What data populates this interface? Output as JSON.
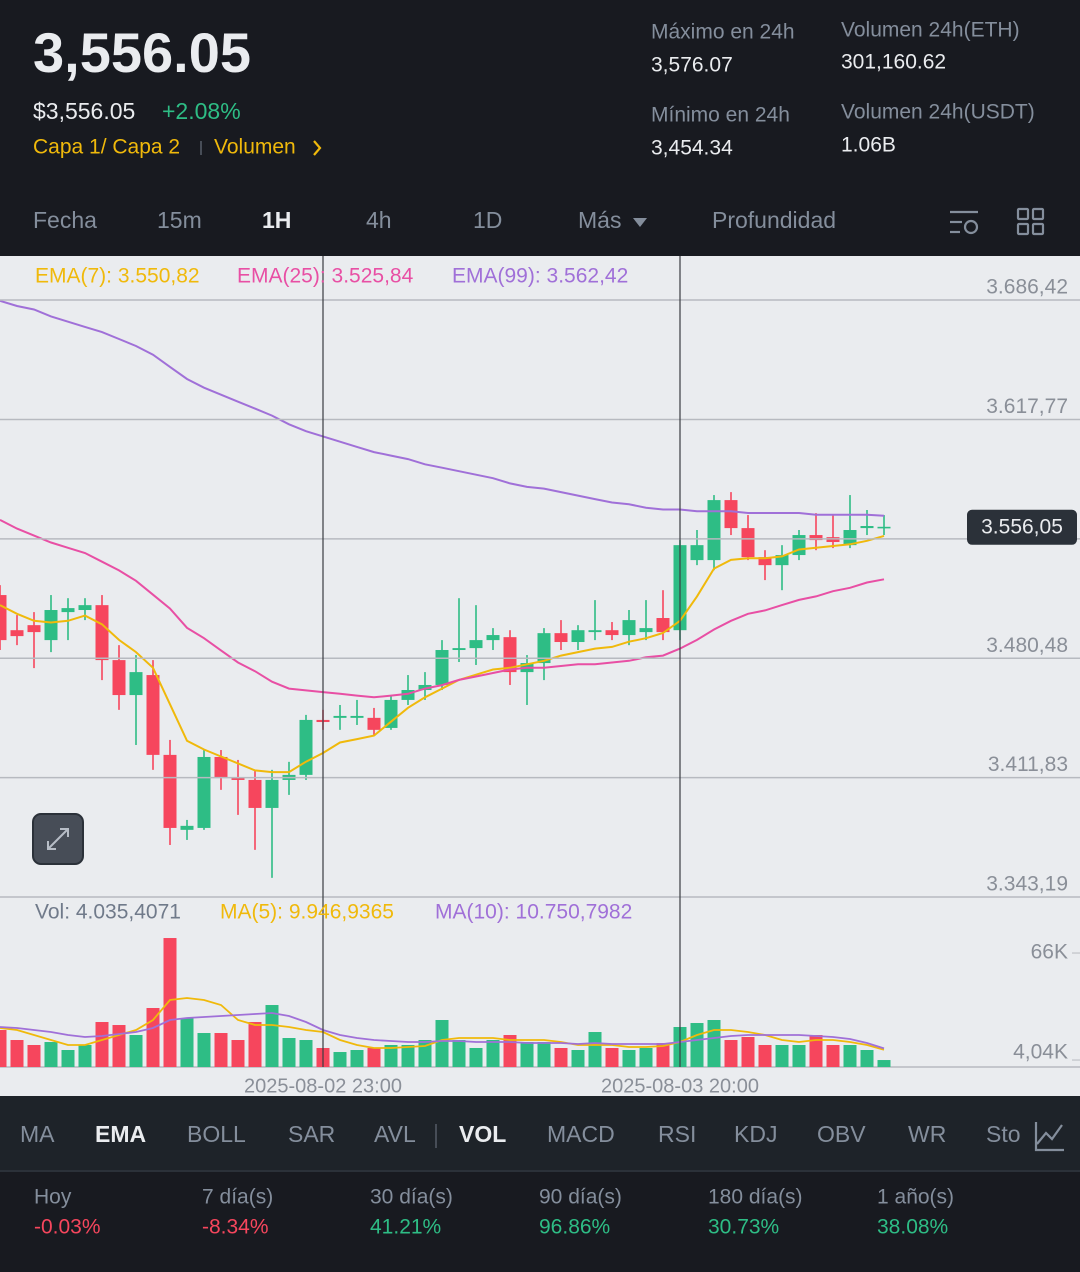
{
  "header": {
    "price": "3,556.05",
    "fiat_price": "$3,556.05",
    "change": "+2.08%",
    "tag": "Capa 1/ Capa 2",
    "tag_link": "Volumen",
    "stats": [
      {
        "label": "Máximo en 24h",
        "value": "3,576.07"
      },
      {
        "label": "Mínimo en 24h",
        "value": "3,454.34"
      },
      {
        "label": "Volumen 24h(ETH)",
        "value": "301,160.62"
      },
      {
        "label": "Volumen 24h(USDT)",
        "value": "1.06B"
      }
    ]
  },
  "tabs": [
    {
      "label": "Fecha",
      "active": false
    },
    {
      "label": "15m",
      "active": false
    },
    {
      "label": "1H",
      "active": true
    },
    {
      "label": "4h",
      "active": false
    },
    {
      "label": "1D",
      "active": false
    },
    {
      "label": "Más",
      "active": false
    },
    {
      "label": "Profundidad",
      "active": false
    }
  ],
  "chart_data": [
    {
      "type": "candlestick",
      "up_color": "#2ebd85",
      "down_color": "#f6465d",
      "categories": [
        null,
        null,
        null,
        null,
        null,
        null,
        null,
        null,
        null,
        null,
        null,
        null,
        null,
        null,
        null,
        null,
        null,
        null,
        null,
        "2025-08-02 23:00",
        null,
        null,
        null,
        null,
        null,
        null,
        null,
        null,
        null,
        null,
        null,
        null,
        null,
        null,
        null,
        null,
        null,
        null,
        null,
        null,
        "2025-08-03 20:00",
        null,
        null,
        null,
        null,
        null,
        null,
        null,
        null,
        null,
        null,
        null,
        null
      ],
      "open": [
        3516.8,
        3496.6,
        3499.5,
        3490.9,
        3507.0,
        3508.2,
        3511.0,
        3479.4,
        3459.3,
        3470.8,
        3424.9,
        3381.8,
        3382.9,
        3423.7,
        3411.7,
        3410.5,
        3394.4,
        3410.5,
        3413.4,
        3445.0,
        3446.2,
        3446.2,
        3446.2,
        3440.4,
        3456.5,
        3462.2,
        3465.1,
        3485.2,
        3486.3,
        3490.9,
        3492.6,
        3472.5,
        3477.7,
        3494.9,
        3489.8,
        3495.5,
        3496.6,
        3493.8,
        3495.5,
        3503.6,
        3496.6,
        3536.9,
        3536.9,
        3571.4,
        3555.3,
        3538.6,
        3534.0,
        3539.8,
        3551.3,
        3550.1,
        3545.5,
        3555.3,
        3555.9
      ],
      "high": [
        3522.5,
        3505.3,
        3507.0,
        3516.8,
        3515.0,
        3515.0,
        3516.8,
        3488.0,
        3482.3,
        3479.4,
        3433.5,
        3387.5,
        3427.7,
        3427.7,
        3422.0,
        3416.3,
        3416.3,
        3420.9,
        3447.9,
        3450.8,
        3453.6,
        3456.5,
        3451.9,
        3459.3,
        3470.8,
        3472.5,
        3490.9,
        3515.0,
        3511.0,
        3497.8,
        3496.6,
        3482.3,
        3497.8,
        3502.4,
        3499.5,
        3513.9,
        3501.3,
        3508.2,
        3513.9,
        3519.6,
        3548.4,
        3554.2,
        3574.3,
        3576.0,
        3562.8,
        3542.6,
        3545.5,
        3554.2,
        3563.9,
        3562.8,
        3574.3,
        3565.7,
        3562.8
      ],
      "low": [
        3485.2,
        3488.0,
        3474.8,
        3484.0,
        3490.9,
        3502.4,
        3467.9,
        3450.8,
        3430.6,
        3416.3,
        3373.1,
        3376.0,
        3381.8,
        3404.8,
        3390.4,
        3370.3,
        3354.2,
        3401.9,
        3410.5,
        3439.3,
        3439.3,
        3442.1,
        3436.4,
        3439.3,
        3453.6,
        3456.5,
        3462.2,
        3478.3,
        3476.6,
        3485.2,
        3465.1,
        3453.6,
        3467.9,
        3485.2,
        3485.2,
        3490.9,
        3490.9,
        3488.0,
        3490.9,
        3490.9,
        3490.9,
        3534.0,
        3531.1,
        3551.3,
        3536.9,
        3525.4,
        3519.6,
        3536.9,
        3542.6,
        3543.8,
        3543.8,
        3551.3,
        3551.3
      ],
      "close": [
        3490.9,
        3493.2,
        3495.5,
        3508.2,
        3509.3,
        3511.0,
        3479.4,
        3459.3,
        3472.5,
        3424.9,
        3382.9,
        3384.1,
        3423.7,
        3411.7,
        3410.5,
        3394.4,
        3410.5,
        3413.4,
        3445.0,
        3443.8,
        3447.3,
        3447.3,
        3439.3,
        3456.5,
        3462.2,
        3465.1,
        3485.2,
        3486.3,
        3490.9,
        3493.8,
        3472.5,
        3477.7,
        3494.9,
        3489.8,
        3496.6,
        3496.6,
        3493.8,
        3502.4,
        3497.8,
        3495.5,
        3545.5,
        3545.5,
        3571.4,
        3555.3,
        3538.6,
        3534.0,
        3539.8,
        3551.3,
        3548.4,
        3547.3,
        3554.2,
        3556.5,
        3556.05
      ],
      "series": [
        {
          "name": "EMA(7): 3.550,82",
          "color": "#f0b90b",
          "values": [
            3511,
            3506,
            3502,
            3501,
            3502,
            3505,
            3500,
            3491,
            3484,
            3475,
            3454,
            3433,
            3428,
            3424,
            3420,
            3416,
            3415,
            3415,
            3421,
            3426,
            3432,
            3434,
            3436,
            3444,
            3452,
            3458,
            3463,
            3468,
            3471,
            3474,
            3475,
            3477,
            3479,
            3482,
            3484,
            3486,
            3487,
            3490,
            3492,
            3495,
            3502,
            3516,
            3532,
            3537,
            3538,
            3538,
            3539,
            3543,
            3544,
            3545,
            3546,
            3548,
            3550.82
          ]
        },
        {
          "name": "EMA(25): 3.525,84",
          "color": "#e84fa4",
          "values": [
            3560,
            3555,
            3551,
            3547,
            3544,
            3541,
            3536,
            3531,
            3525,
            3517,
            3509,
            3498,
            3492,
            3485,
            3478,
            3473,
            3467,
            3463,
            3462,
            3461,
            3460,
            3459,
            3458,
            3459,
            3460,
            3463,
            3465,
            3468,
            3470,
            3472,
            3474,
            3475,
            3475,
            3476,
            3477,
            3477,
            3478,
            3479,
            3481,
            3482,
            3486,
            3491,
            3497,
            3502,
            3506,
            3508,
            3511,
            3514,
            3516,
            3519,
            3521,
            3524,
            3525.84
          ]
        },
        {
          "name": "EMA(99): 3.562,42",
          "color": "#a070d8",
          "values": [
            3686,
            3683,
            3681,
            3677,
            3674,
            3671,
            3668,
            3664,
            3660,
            3655,
            3648,
            3641,
            3636,
            3632,
            3628,
            3624,
            3620,
            3615,
            3611,
            3608,
            3605,
            3602,
            3599,
            3597,
            3595,
            3592,
            3590,
            3588,
            3586,
            3584,
            3581,
            3579,
            3578,
            3576,
            3574,
            3572,
            3570,
            3569,
            3567,
            3566,
            3566,
            3565,
            3565,
            3565,
            3564,
            3564,
            3564,
            3564,
            3563,
            3563,
            3563,
            3563,
            3562.42
          ]
        }
      ],
      "last_price": {
        "value": 3556.05,
        "label": "3.556,05"
      },
      "ylim": [
        3343.19,
        3710.6
      ],
      "yticks": [
        {
          "value": 3343.19,
          "label": "3.343,19"
        },
        {
          "value": 3411.83,
          "label": "3.411,83"
        },
        {
          "value": 3480.48,
          "label": "3.480,48"
        },
        {
          "value": 3549.12,
          "label": null
        },
        {
          "value": 3617.77,
          "label": "3.617,77"
        },
        {
          "value": 3686.42,
          "label": "3.686,42"
        }
      ],
      "grid": true
    },
    {
      "type": "bar",
      "title": "Vol: 4.035,4071",
      "values": [
        21420,
        15630,
        12740,
        14470,
        9840,
        12740,
        26050,
        24310,
        18530,
        34160,
        74680,
        28370,
        19680,
        19680,
        15630,
        26050,
        35890,
        16790,
        15630,
        11000,
        8680,
        9840,
        11000,
        12740,
        12740,
        15630,
        27210,
        15630,
        11000,
        15630,
        18530,
        14470,
        14470,
        11000,
        9840,
        20260,
        11000,
        9840,
        11000,
        13890,
        23160,
        25470,
        27210,
        15630,
        17370,
        12740,
        12740,
        12740,
        18530,
        12740,
        12740,
        9840,
        4035.4071
      ],
      "series": [
        {
          "name": "MA(5): 9.946,9365",
          "color": "#f0b90b",
          "values": [
            22577,
            21419,
            18525,
            15630,
            12736,
            12736,
            15630,
            18525,
            21419,
            27208,
            38786,
            39944,
            38786,
            35892,
            27208,
            24314,
            24314,
            23156,
            21419,
            20262,
            15630,
            12736,
            10999,
            10999,
            11578,
            12157,
            15630,
            16788,
            16788,
            16788,
            15630,
            15630,
            15630,
            14473,
            12736,
            12736,
            12736,
            11578,
            11578,
            12157,
            14473,
            18525,
            21419,
            21419,
            20262,
            18525,
            15630,
            14473,
            15630,
            15630,
            14473,
            12736,
            9946.9365
          ]
        },
        {
          "name": "MA(10): 10.750,7982",
          "color": "#a070d8",
          "values": [
            23156,
            22577,
            21419,
            20262,
            18525,
            17367,
            17946,
            19104,
            20262,
            22577,
            27208,
            28366,
            28945,
            29524,
            30103,
            30682,
            31261,
            29524,
            26051,
            21419,
            18525,
            16788,
            15630,
            15051,
            14473,
            14473,
            15051,
            15051,
            14473,
            14473,
            14473,
            13894,
            13894,
            13894,
            13315,
            13894,
            13315,
            13315,
            13315,
            13315,
            14473,
            15630,
            16788,
            17946,
            18525,
            18525,
            18525,
            18525,
            17946,
            17367,
            16209,
            13894,
            10750.7982
          ]
        }
      ],
      "ylim": [
        0,
        96700
      ],
      "yticks": [
        {
          "value": 4040,
          "label": "4,04K"
        },
        {
          "value": 66000,
          "label": "66K"
        }
      ]
    }
  ],
  "indicator_tabs": [
    {
      "label": "MA",
      "active": false
    },
    {
      "label": "EMA",
      "active": true
    },
    {
      "label": "BOLL",
      "active": false
    },
    {
      "label": "SAR",
      "active": false
    },
    {
      "label": "AVL",
      "active": false
    },
    {
      "label": "VOL",
      "active": true
    },
    {
      "label": "MACD",
      "active": false
    },
    {
      "label": "RSI",
      "active": false
    },
    {
      "label": "KDJ",
      "active": false
    },
    {
      "label": "OBV",
      "active": false
    },
    {
      "label": "WR",
      "active": false
    },
    {
      "label": "Sto",
      "active": false
    }
  ],
  "performance": [
    {
      "period": "Hoy",
      "value": "-0.03%"
    },
    {
      "period": "7 día(s)",
      "value": "-8.34%"
    },
    {
      "period": "30 día(s)",
      "value": "41.21%"
    },
    {
      "period": "90 día(s)",
      "value": "96.86%"
    },
    {
      "period": "180 día(s)",
      "value": "30.73%"
    },
    {
      "period": "1 año(s)",
      "value": "38.08%"
    }
  ]
}
